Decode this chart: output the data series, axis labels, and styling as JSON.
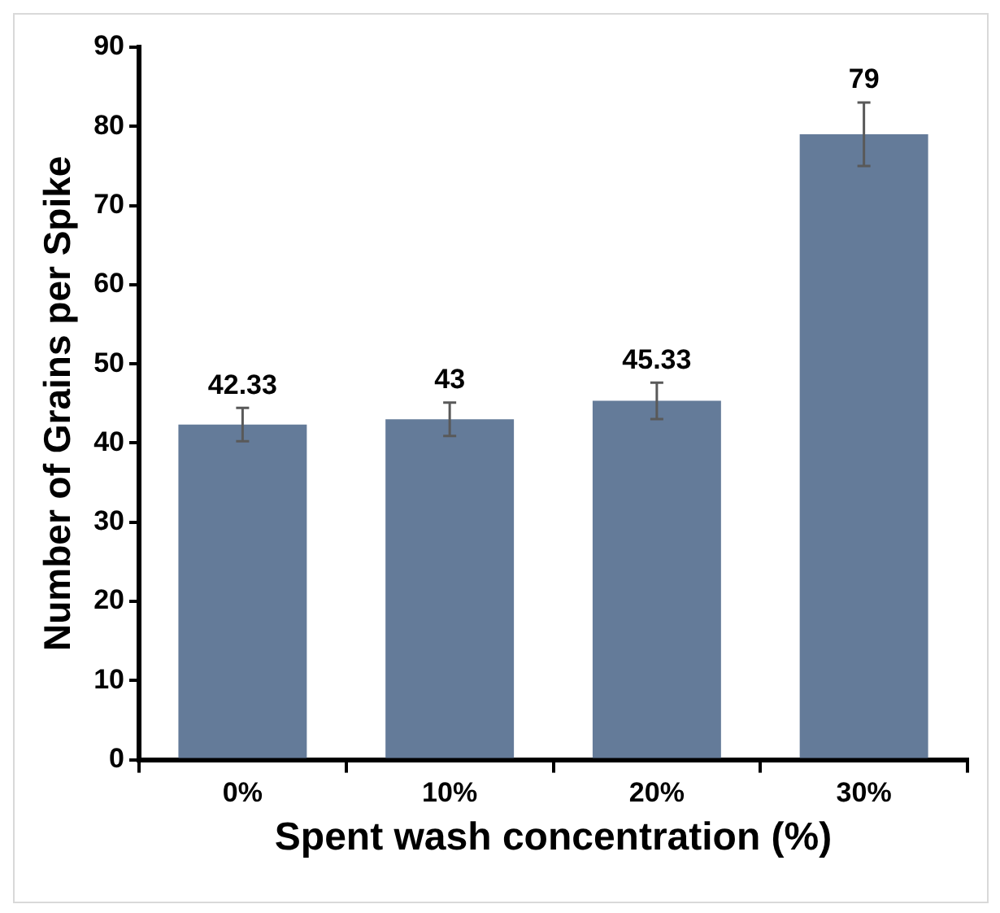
{
  "chart_data": {
    "type": "bar",
    "xlabel": "Spent wash concentration (%)",
    "ylabel": "Number of Grains per Spike",
    "categories": [
      "0%",
      "10%",
      "20%",
      "30%"
    ],
    "values": [
      42.33,
      43,
      45.33,
      79
    ],
    "errors": [
      2.1,
      2.1,
      2.3,
      4
    ],
    "color": "#647b99",
    "ylim": [
      0,
      90
    ],
    "yticks": [
      0,
      10,
      20,
      30,
      40,
      50,
      60,
      70,
      80,
      90
    ],
    "data_labels": true,
    "grid": false,
    "legend": false
  }
}
